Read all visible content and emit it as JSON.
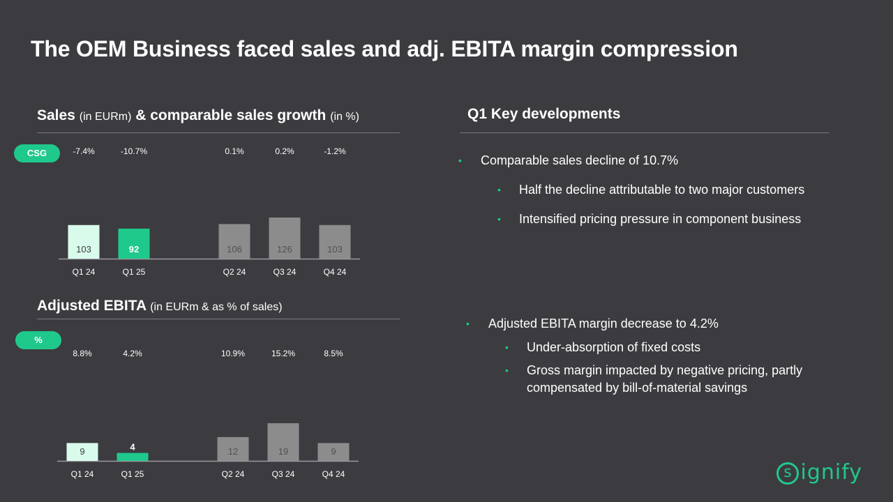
{
  "title": "The OEM Business faced sales and adj. EBITA margin compression",
  "sales_section": {
    "heading_main": "Sales",
    "heading_unit": "(in EURm)",
    "heading_main2": "& comparable sales growth",
    "heading_unit2": "(in %)",
    "pill": "CSG"
  },
  "ebita_section": {
    "heading_main": "Adjusted EBITA",
    "heading_unit": "(in EURm & as % of sales)",
    "pill": "%"
  },
  "key_heading": "Q1 Key developments",
  "bullets_top": {
    "main": "Comparable sales decline of 10.7%",
    "sub1": "Half the decline attributable to two major customers",
    "sub2": "Intensified pricing pressure in component business"
  },
  "bullets_bottom": {
    "main": "Adjusted EBITA margin decrease to 4.2%",
    "sub1": "Under-absorption of fixed costs",
    "sub2_line1": "Gross margin impacted by negative pricing, partly",
    "sub2_line2": "compensated by bill-of-material savings"
  },
  "logo": {
    "mark": "s",
    "text": "ignify"
  },
  "colors": {
    "bg": "#3c3b40",
    "accent": "#1fc98b",
    "light": "#d9fbeb",
    "grey": "#8c8c8c"
  },
  "chart_data": [
    {
      "type": "bar",
      "title": "Sales & comparable sales growth",
      "categories": [
        "Q1 24",
        "Q1 25",
        "Q2 24",
        "Q3 24",
        "Q4 24"
      ],
      "values": [
        103,
        92,
        106,
        126,
        103
      ],
      "value_labels": [
        "103",
        "92",
        "106",
        "126",
        "103"
      ],
      "top_labels": [
        "-7.4%",
        "-10.7%",
        "0.1%",
        "0.2%",
        "-1.2%"
      ],
      "bar_styles": [
        "light",
        "accent",
        "grey",
        "grey",
        "grey"
      ],
      "ylabel": "EURm",
      "ylim": [
        0,
        126
      ]
    },
    {
      "type": "bar",
      "title": "Adjusted EBITA",
      "categories": [
        "Q1 24",
        "Q1 25",
        "Q2 24",
        "Q3 24",
        "Q4 24"
      ],
      "values": [
        9,
        4,
        12,
        19,
        9
      ],
      "value_labels": [
        "9",
        "4",
        "12",
        "19",
        "9"
      ],
      "top_labels": [
        "8.8%",
        "4.2%",
        "10.9%",
        "15.2%",
        "8.5%"
      ],
      "bar_styles": [
        "light",
        "accent",
        "grey",
        "grey",
        "grey"
      ],
      "ylabel": "EURm",
      "ylim": [
        0,
        19
      ]
    }
  ]
}
